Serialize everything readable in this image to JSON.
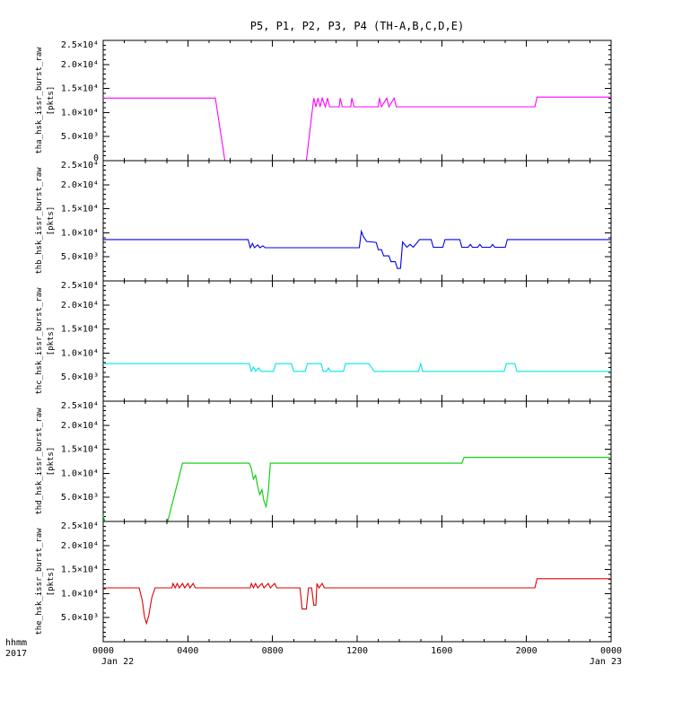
{
  "chart_data": {
    "type": "line",
    "title": "P5, P1, P2, P3, P4 (TH-A,B,C,D,E)",
    "grid": false,
    "legend": "none",
    "x_axis": {
      "corner_label": "hhmm",
      "corner_year": "2017",
      "range_hours": [
        0,
        24
      ],
      "major_ticks": [
        0,
        4,
        8,
        12,
        16,
        20,
        24
      ],
      "tick_labels": [
        "0000",
        "0400",
        "0800",
        "1200",
        "1600",
        "2000",
        "0000"
      ],
      "date_start": "Jan 22",
      "date_end": "Jan 23"
    },
    "y_axis": {
      "range": [
        0,
        25000
      ],
      "minor_step": 1000,
      "tick_values": [
        0,
        5000,
        10000,
        15000,
        20000,
        25000
      ],
      "tick_labels": [
        "0",
        "5.0×10³",
        "1.0×10⁴",
        "1.5×10⁴",
        "2.0×10⁴",
        "2.5×10⁴"
      ]
    },
    "panels": [
      {
        "name": "tha",
        "ylabel": "tha_hsk_issr_burst_raw",
        "ylabel_units": "[pkts]",
        "color": "#ff00ff",
        "points": [
          [
            0,
            13000
          ],
          [
            5.3,
            13000
          ],
          [
            5.75,
            0
          ],
          [
            9.6,
            0
          ],
          [
            9.9,
            11200
          ],
          [
            9.95,
            13000
          ],
          [
            10.05,
            11200
          ],
          [
            10.15,
            13000
          ],
          [
            10.25,
            11200
          ],
          [
            10.35,
            13000
          ],
          [
            10.5,
            11200
          ],
          [
            10.6,
            13000
          ],
          [
            10.7,
            11200
          ],
          [
            11.15,
            11200
          ],
          [
            11.2,
            13000
          ],
          [
            11.3,
            11200
          ],
          [
            11.7,
            11200
          ],
          [
            11.75,
            13000
          ],
          [
            11.85,
            11200
          ],
          [
            13.0,
            11200
          ],
          [
            13.05,
            13000
          ],
          [
            13.15,
            11200
          ],
          [
            13.4,
            13000
          ],
          [
            13.5,
            11200
          ],
          [
            13.75,
            13000
          ],
          [
            13.85,
            11200
          ],
          [
            20.4,
            11200
          ],
          [
            20.5,
            13200
          ],
          [
            24,
            13200
          ]
        ]
      },
      {
        "name": "thb",
        "ylabel": "thb_hsk_issr_burst_raw",
        "ylabel_units": "[pkts]",
        "color": "#0000ee",
        "points": [
          [
            0,
            8600
          ],
          [
            6.85,
            8600
          ],
          [
            6.95,
            6900
          ],
          [
            7.05,
            7800
          ],
          [
            7.15,
            6900
          ],
          [
            7.3,
            7500
          ],
          [
            7.4,
            6900
          ],
          [
            7.55,
            7300
          ],
          [
            7.65,
            6900
          ],
          [
            12.1,
            6900
          ],
          [
            12.2,
            10300
          ],
          [
            12.3,
            9200
          ],
          [
            12.45,
            8200
          ],
          [
            12.9,
            8000
          ],
          [
            13.0,
            6500
          ],
          [
            13.15,
            6500
          ],
          [
            13.25,
            5200
          ],
          [
            13.5,
            5200
          ],
          [
            13.6,
            4000
          ],
          [
            13.8,
            4000
          ],
          [
            13.9,
            2600
          ],
          [
            14.05,
            2600
          ],
          [
            14.15,
            8100
          ],
          [
            14.35,
            7000
          ],
          [
            14.5,
            7600
          ],
          [
            14.65,
            7000
          ],
          [
            14.95,
            8600
          ],
          [
            15.5,
            8600
          ],
          [
            15.6,
            7000
          ],
          [
            16.05,
            7000
          ],
          [
            16.15,
            8600
          ],
          [
            16.85,
            8600
          ],
          [
            16.95,
            7000
          ],
          [
            17.25,
            7000
          ],
          [
            17.35,
            7600
          ],
          [
            17.45,
            7000
          ],
          [
            17.7,
            7000
          ],
          [
            17.8,
            7600
          ],
          [
            17.9,
            7000
          ],
          [
            18.3,
            7000
          ],
          [
            18.4,
            7600
          ],
          [
            18.5,
            7000
          ],
          [
            19.0,
            7000
          ],
          [
            19.1,
            8600
          ],
          [
            24,
            8600
          ]
        ]
      },
      {
        "name": "thc",
        "ylabel": "thc_hsk_issr_burst_raw",
        "ylabel_units": "[pkts]",
        "color": "#00e5e5",
        "points": [
          [
            0,
            7800
          ],
          [
            6.9,
            7800
          ],
          [
            7.0,
            6200
          ],
          [
            7.1,
            7100
          ],
          [
            7.2,
            6200
          ],
          [
            7.35,
            6900
          ],
          [
            7.45,
            6200
          ],
          [
            8.05,
            6200
          ],
          [
            8.15,
            7800
          ],
          [
            8.9,
            7800
          ],
          [
            9.0,
            6200
          ],
          [
            9.55,
            6200
          ],
          [
            9.65,
            7800
          ],
          [
            10.3,
            7800
          ],
          [
            10.4,
            6200
          ],
          [
            10.55,
            6200
          ],
          [
            10.65,
            6900
          ],
          [
            10.75,
            6200
          ],
          [
            11.35,
            6200
          ],
          [
            11.45,
            7800
          ],
          [
            12.55,
            7800
          ],
          [
            12.7,
            6900
          ],
          [
            12.8,
            6200
          ],
          [
            14.9,
            6200
          ],
          [
            15.0,
            7800
          ],
          [
            15.1,
            6200
          ],
          [
            18.95,
            6200
          ],
          [
            19.05,
            7800
          ],
          [
            19.45,
            7800
          ],
          [
            19.55,
            6200
          ],
          [
            24,
            6200
          ]
        ]
      },
      {
        "name": "thd",
        "ylabel": "thd_hsk_issr_burst_raw",
        "ylabel_units": "[pkts]",
        "color": "#00cc00",
        "points": [
          [
            0,
            1200
          ],
          [
            0.08,
            0
          ],
          [
            3.05,
            0
          ],
          [
            3.75,
            12100
          ],
          [
            6.9,
            12100
          ],
          [
            7.0,
            11000
          ],
          [
            7.1,
            8800
          ],
          [
            7.2,
            9600
          ],
          [
            7.3,
            7200
          ],
          [
            7.4,
            5600
          ],
          [
            7.5,
            6600
          ],
          [
            7.6,
            4200
          ],
          [
            7.7,
            3100
          ],
          [
            7.8,
            6200
          ],
          [
            7.9,
            12100
          ],
          [
            16.95,
            12100
          ],
          [
            17.05,
            13300
          ],
          [
            24,
            13300
          ]
        ]
      },
      {
        "name": "the",
        "ylabel": "the_hsk_issr_burst_raw",
        "ylabel_units": "[pkts]",
        "color": "#dd0000",
        "points": [
          [
            0,
            11200
          ],
          [
            1.7,
            11200
          ],
          [
            1.85,
            8500
          ],
          [
            1.95,
            5200
          ],
          [
            2.05,
            3800
          ],
          [
            2.15,
            5400
          ],
          [
            2.3,
            9200
          ],
          [
            2.45,
            11200
          ],
          [
            3.25,
            11200
          ],
          [
            3.3,
            12100
          ],
          [
            3.4,
            11200
          ],
          [
            3.5,
            12100
          ],
          [
            3.6,
            11200
          ],
          [
            3.75,
            12100
          ],
          [
            3.85,
            11200
          ],
          [
            4.0,
            12100
          ],
          [
            4.1,
            11200
          ],
          [
            4.25,
            12100
          ],
          [
            4.35,
            11200
          ],
          [
            6.95,
            11200
          ],
          [
            7.0,
            12100
          ],
          [
            7.1,
            11200
          ],
          [
            7.2,
            12100
          ],
          [
            7.3,
            11200
          ],
          [
            7.5,
            12100
          ],
          [
            7.6,
            11200
          ],
          [
            7.8,
            12100
          ],
          [
            7.9,
            11200
          ],
          [
            8.1,
            12100
          ],
          [
            8.2,
            11200
          ],
          [
            9.3,
            11200
          ],
          [
            9.4,
            6800
          ],
          [
            9.6,
            6800
          ],
          [
            9.7,
            11200
          ],
          [
            9.85,
            11200
          ],
          [
            9.95,
            7600
          ],
          [
            10.05,
            7600
          ],
          [
            10.1,
            12100
          ],
          [
            10.2,
            11200
          ],
          [
            10.35,
            12100
          ],
          [
            10.45,
            11200
          ],
          [
            20.4,
            11200
          ],
          [
            20.5,
            13100
          ],
          [
            24,
            13100
          ]
        ]
      }
    ]
  }
}
